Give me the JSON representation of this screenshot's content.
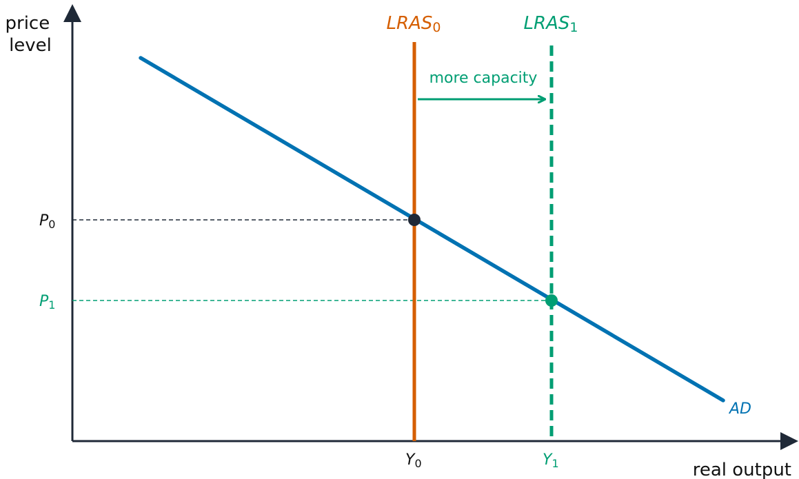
{
  "axes": {
    "y_label_line1": "price",
    "y_label_line2": "level",
    "x_label": "real output"
  },
  "curves": {
    "ad_label": "AD",
    "lras0_label": "LRAS",
    "lras0_sub": "0",
    "lras1_label": "LRAS",
    "lras1_sub": "1"
  },
  "annotation": {
    "shift_label": "more capacity"
  },
  "ticks": {
    "p0": "P",
    "p0_sub": "0",
    "p1": "P",
    "p1_sub": "1",
    "y0": "Y",
    "y0_sub": "0",
    "y1": "Y",
    "y1_sub": "1"
  },
  "colors": {
    "ad": "#0072B2",
    "lras0": "#D55E00",
    "lras1": "#009E73",
    "axis": "#1f2937"
  }
}
